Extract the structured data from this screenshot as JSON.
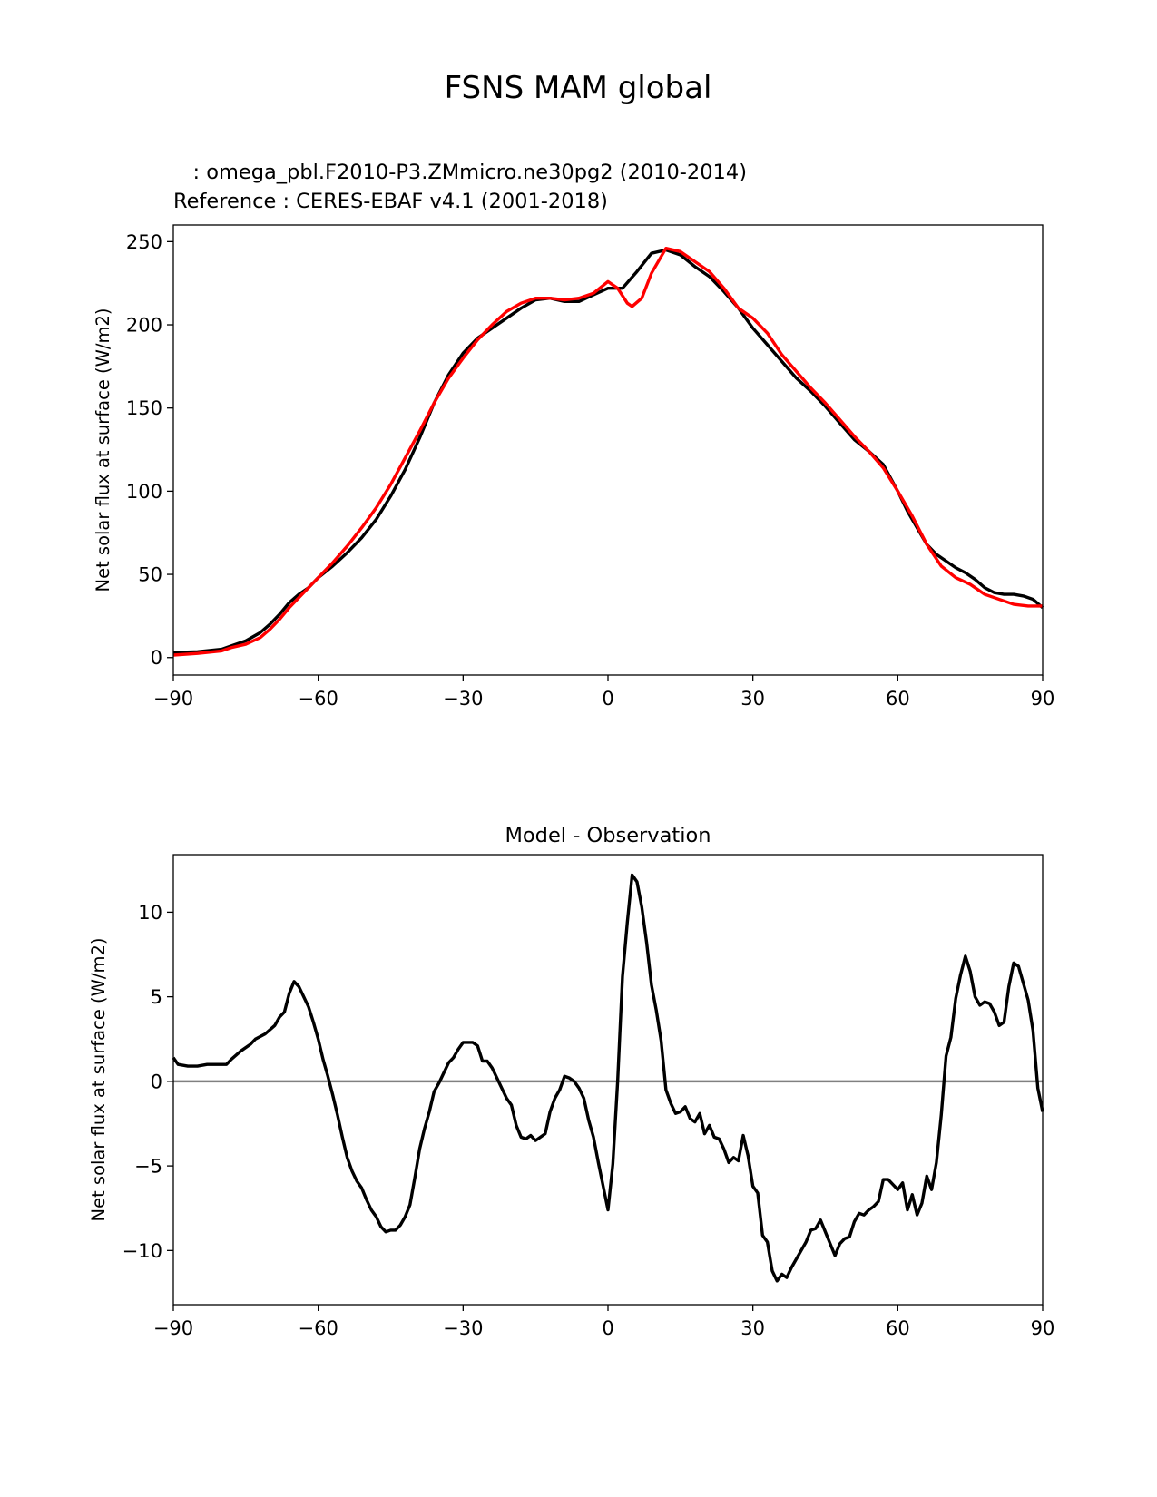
{
  "figure": {
    "title": "FSNS MAM global",
    "test_label": "   : omega_pbl.F2010-P3.ZMmicro.ne30pg2 (2010-2014)",
    "ref_label": "Reference : CERES-EBAF v4.1 (2001-2018)"
  },
  "colors": {
    "test": "#000000",
    "reference": "#ff0000",
    "zero_line": "#808080",
    "axes": "#000000"
  },
  "chart_data": [
    {
      "type": "line",
      "name": "top-panel",
      "title": "",
      "xlabel": "",
      "ylabel": "Net solar flux at surface (W/m2)",
      "xlim": [
        -90,
        90
      ],
      "ylim": [
        -10.5,
        260
      ],
      "xticks": [
        -90,
        -60,
        -30,
        0,
        30,
        60,
        90
      ],
      "xtick_labels": [
        "−90",
        "−60",
        "−30",
        "0",
        "30",
        "60",
        "90"
      ],
      "yticks": [
        0,
        50,
        100,
        150,
        200,
        250
      ],
      "ytick_labels": [
        "0",
        "50",
        "100",
        "150",
        "200",
        "250"
      ],
      "series": [
        {
          "name": "omega_pbl.F2010-P3.ZMmicro.ne30pg2 (2010-2014)",
          "color": "#000000",
          "x": [
            -90,
            -85,
            -80,
            -78,
            -75,
            -72,
            -70,
            -68,
            -66,
            -64,
            -62,
            -60,
            -57,
            -54,
            -51,
            -48,
            -45,
            -42,
            -39,
            -36,
            -33,
            -30,
            -27,
            -24,
            -21,
            -18,
            -15,
            -12,
            -9,
            -6,
            -3,
            0,
            3,
            6,
            9,
            12,
            15,
            18,
            21,
            24,
            27,
            30,
            33,
            36,
            39,
            42,
            45,
            48,
            51,
            54,
            57,
            60,
            62,
            64,
            66,
            68,
            70,
            72,
            74,
            76,
            78,
            80,
            82,
            84,
            86,
            88,
            90
          ],
          "y": [
            3,
            3.5,
            5,
            7,
            10,
            15,
            20,
            26,
            33,
            38,
            42,
            48,
            55,
            63,
            72,
            83,
            97,
            113,
            132,
            153,
            170,
            183,
            192,
            198,
            204,
            210,
            215,
            216,
            214,
            214,
            218,
            222,
            222,
            232,
            243,
            245,
            242,
            235,
            229,
            220,
            210,
            198,
            188,
            178,
            168,
            160,
            151,
            141,
            131,
            124,
            116,
            100,
            88,
            78,
            68,
            62,
            58,
            54,
            51,
            47,
            42,
            39,
            38,
            38,
            37,
            35,
            30
          ]
        },
        {
          "name": "CERES-EBAF v4.1 (2001-2018)",
          "color": "#ff0000",
          "x": [
            -90,
            -85,
            -80,
            -78,
            -75,
            -72,
            -70,
            -68,
            -66,
            -64,
            -62,
            -60,
            -57,
            -54,
            -51,
            -48,
            -45,
            -42,
            -39,
            -36,
            -33,
            -30,
            -27,
            -24,
            -21,
            -18,
            -15,
            -12,
            -9,
            -6,
            -3,
            0,
            2,
            4,
            5,
            7,
            9,
            12,
            15,
            18,
            21,
            24,
            27,
            30,
            33,
            36,
            39,
            42,
            45,
            48,
            51,
            54,
            57,
            60,
            63,
            66,
            69,
            72,
            75,
            78,
            81,
            84,
            87,
            90
          ],
          "y": [
            1.5,
            2.5,
            4,
            6,
            8,
            12,
            17,
            23,
            30,
            36,
            42,
            48,
            57,
            67,
            78,
            90,
            104,
            120,
            136,
            153,
            168,
            180,
            191,
            200,
            208,
            213,
            216,
            216,
            215,
            216,
            219,
            226,
            222,
            213,
            211,
            216,
            231,
            246,
            244,
            238,
            232,
            222,
            210,
            204,
            195,
            182,
            172,
            162,
            153,
            143,
            133,
            124,
            114,
            100,
            85,
            68,
            55,
            48,
            44,
            38,
            35,
            32,
            31,
            31
          ]
        }
      ]
    },
    {
      "type": "line",
      "name": "bottom-panel",
      "title": "Model - Observation",
      "xlabel": "",
      "ylabel": "Net solar flux at surface (W/m2)",
      "xlim": [
        -90,
        90
      ],
      "ylim": [
        -13.2,
        13.4
      ],
      "xticks": [
        -90,
        -60,
        -30,
        0,
        30,
        60,
        90
      ],
      "xtick_labels": [
        "−90",
        "−60",
        "−30",
        "0",
        "30",
        "60",
        "90"
      ],
      "yticks": [
        -10,
        -5,
        0,
        5,
        10
      ],
      "ytick_labels": [
        "−10",
        "−5",
        "0",
        "5",
        "10"
      ],
      "zero_line": 0,
      "series": [
        {
          "name": "Model - Observation",
          "color": "#000000",
          "x": [
            -90,
            -89,
            -87,
            -85,
            -83,
            -81,
            -79,
            -78,
            -76,
            -74,
            -73,
            -71,
            -69,
            -68,
            -67,
            -66,
            -65,
            -64,
            -63,
            -62,
            -61,
            -60,
            -59,
            -58,
            -57,
            -56,
            -55,
            -54,
            -53,
            -52,
            -51,
            -50,
            -49,
            -48,
            -47,
            -46,
            -45,
            -44,
            -43,
            -42,
            -41,
            -40,
            -39,
            -38,
            -37,
            -36,
            -35,
            -34,
            -33,
            -32,
            -31,
            -30,
            -29,
            -28,
            -27,
            -26,
            -25,
            -24,
            -23,
            -22,
            -21,
            -20,
            -19,
            -18,
            -17,
            -16,
            -15,
            -14,
            -13,
            -12,
            -11,
            -10,
            -9,
            -8,
            -7,
            -6,
            -5,
            -4,
            -3,
            -2,
            -1,
            0,
            1,
            2,
            3,
            4,
            5,
            6,
            7,
            8,
            9,
            10,
            11,
            12,
            13,
            14,
            15,
            16,
            17,
            18,
            19,
            20,
            21,
            22,
            23,
            24,
            25,
            26,
            27,
            28,
            29,
            30,
            31,
            32,
            33,
            34,
            35,
            36,
            37,
            38,
            39,
            40,
            41,
            42,
            43,
            44,
            45,
            46,
            47,
            48,
            49,
            50,
            51,
            52,
            53,
            54,
            55,
            56,
            57,
            58,
            59,
            60,
            61,
            62,
            63,
            64,
            65,
            66,
            67,
            68,
            69,
            70,
            71,
            72,
            73,
            74,
            75,
            76,
            77,
            78,
            79,
            80,
            81,
            82,
            83,
            84,
            85,
            86,
            87,
            88,
            89,
            90
          ],
          "y": [
            1.4,
            1.0,
            0.9,
            0.9,
            1.0,
            1.0,
            1.0,
            1.3,
            1.8,
            2.2,
            2.5,
            2.8,
            3.3,
            3.8,
            4.1,
            5.2,
            5.9,
            5.6,
            5.0,
            4.4,
            3.5,
            2.5,
            1.3,
            0.3,
            -0.8,
            -2.0,
            -3.3,
            -4.5,
            -5.3,
            -5.9,
            -6.3,
            -7.0,
            -7.6,
            -8.0,
            -8.6,
            -8.9,
            -8.8,
            -8.8,
            -8.5,
            -8.0,
            -7.3,
            -5.7,
            -4.0,
            -2.8,
            -1.8,
            -0.6,
            -0.1,
            0.5,
            1.1,
            1.4,
            1.9,
            2.3,
            2.3,
            2.3,
            2.1,
            1.2,
            1.2,
            0.8,
            0.2,
            -0.4,
            -1.0,
            -1.4,
            -2.6,
            -3.3,
            -3.4,
            -3.2,
            -3.5,
            -3.3,
            -3.1,
            -1.8,
            -1.0,
            -0.5,
            0.3,
            0.2,
            0.0,
            -0.4,
            -1.0,
            -2.3,
            -3.3,
            -4.8,
            -6.2,
            -7.6,
            -4.9,
            0.0,
            6.2,
            9.4,
            12.2,
            11.8,
            10.3,
            8.2,
            5.7,
            4.2,
            2.4,
            -0.5,
            -1.3,
            -1.9,
            -1.8,
            -1.5,
            -2.2,
            -2.4,
            -1.9,
            -3.1,
            -2.6,
            -3.3,
            -3.4,
            -4.0,
            -4.8,
            -4.5,
            -4.7,
            -3.2,
            -4.4,
            -6.2,
            -6.6,
            -9.1,
            -9.5,
            -11.2,
            -11.8,
            -11.4,
            -11.6,
            -11.0,
            -10.5,
            -10.0,
            -9.5,
            -8.8,
            -8.7,
            -8.2,
            -8.9,
            -9.6,
            -10.3,
            -9.6,
            -9.3,
            -9.2,
            -8.3,
            -7.8,
            -7.9,
            -7.6,
            -7.4,
            -7.1,
            -5.8,
            -5.8,
            -6.1,
            -6.4,
            -6.0,
            -7.6,
            -6.7,
            -7.9,
            -7.2,
            -5.6,
            -6.4,
            -4.8,
            -2.0,
            1.5,
            2.6,
            4.9,
            6.3,
            7.4,
            6.5,
            5.0,
            4.5,
            4.7,
            4.6,
            4.1,
            3.3,
            3.5,
            5.6,
            7.0,
            6.8,
            5.8,
            4.8,
            3.0,
            -0.4,
            -1.8
          ]
        }
      ]
    }
  ]
}
